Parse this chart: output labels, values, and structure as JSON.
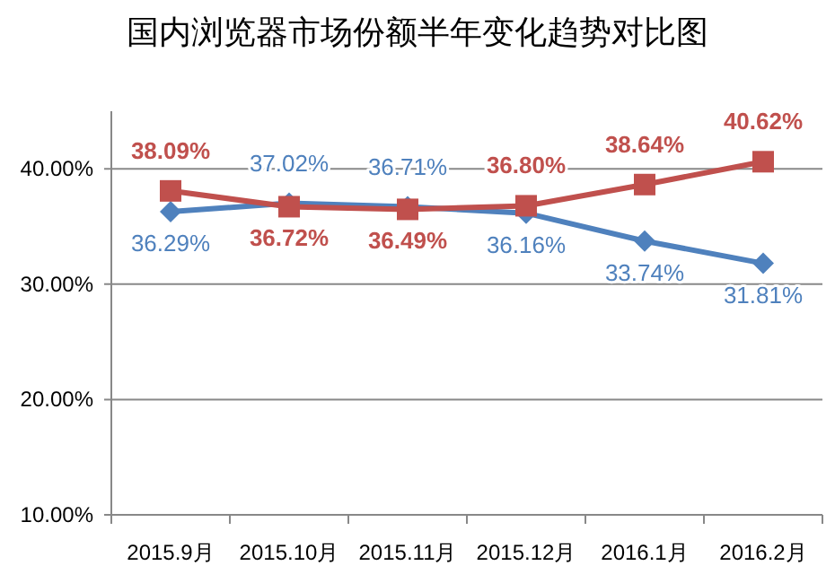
{
  "chart_data": {
    "type": "line",
    "title": "国内浏览器市场份额半年变化趋势对比图",
    "categories": [
      "2015.9月",
      "2015.10月",
      "2015.11月",
      "2015.12月",
      "2016.1月",
      "2016.2月"
    ],
    "series": [
      {
        "color": "#4f81bd",
        "marker": "diamond",
        "values": [
          36.29,
          37.02,
          36.71,
          36.16,
          33.74,
          31.81
        ],
        "value_labels": [
          "36.29%",
          "37.02%",
          "36.71%",
          "36.16%",
          "33.74%",
          "31.81%"
        ]
      },
      {
        "color": "#c0504d",
        "marker": "square",
        "values": [
          38.09,
          36.72,
          36.49,
          36.8,
          38.64,
          40.62
        ],
        "value_labels": [
          "38.09%",
          "36.72%",
          "36.49%",
          "36.80%",
          "38.64%",
          "40.62%"
        ]
      }
    ],
    "ylim": [
      10,
      45
    ],
    "yticks": [
      {
        "value": 10,
        "label": "10.00%"
      },
      {
        "value": 20,
        "label": "20.00%"
      },
      {
        "value": 30,
        "label": "30.00%"
      },
      {
        "value": 40,
        "label": "40.00%"
      }
    ],
    "grid": "y"
  }
}
